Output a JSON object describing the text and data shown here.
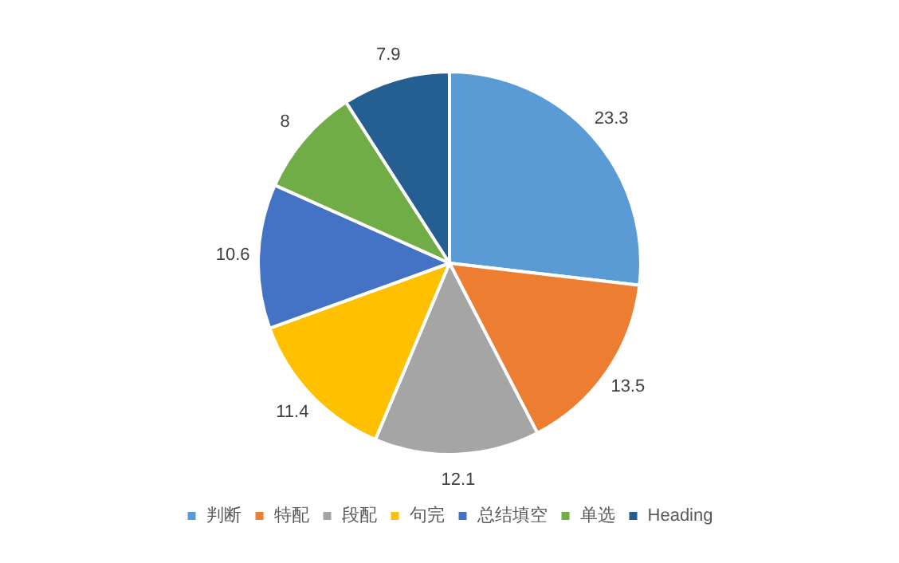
{
  "chart_data": {
    "type": "pie",
    "categories": [
      "判断",
      "特配",
      "段配",
      "句完",
      "总结填空",
      "单选",
      "Heading"
    ],
    "values": [
      23.3,
      13.5,
      12.1,
      11.4,
      10.6,
      8,
      7.9
    ],
    "colors": [
      "#5b9bd5",
      "#ed7d31",
      "#a5a5a5",
      "#ffc000",
      "#4472c4",
      "#70ad47",
      "#255e91"
    ],
    "data_labels": true,
    "legend": "bottom"
  }
}
